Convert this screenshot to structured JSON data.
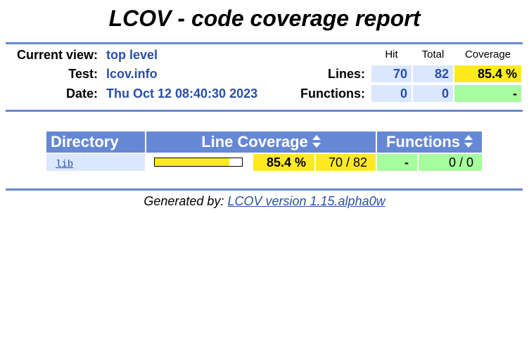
{
  "title": "LCOV - code coverage report",
  "header": {
    "current_view_label": "Current view:",
    "current_view_value": "top level",
    "test_label": "Test:",
    "test_value": "lcov.info",
    "date_label": "Date:",
    "date_value": "Thu Oct 12 08:40:30 2023",
    "col_hit": "Hit",
    "col_total": "Total",
    "col_coverage": "Coverage",
    "lines_label": "Lines:",
    "lines_hit": "70",
    "lines_total": "82",
    "lines_coverage": "85.4 %",
    "functions_label": "Functions:",
    "functions_hit": "0",
    "functions_total": "0",
    "functions_coverage": "-"
  },
  "table": {
    "headers": {
      "directory": "Directory",
      "line_coverage": "Line Coverage",
      "functions": "Functions"
    },
    "rows": [
      {
        "directory": "lib",
        "line_fraction": 0.854,
        "line_percent": "85.4 %",
        "line_ratio": "70 / 82",
        "functions_percent": "-",
        "functions_ratio": "0 / 0"
      }
    ]
  },
  "footer": {
    "prefix": "Generated by:",
    "link_text": "LCOV version 1.15.alpha0w"
  },
  "colors": {
    "accent": "#6688d4",
    "link": "#284fa8",
    "hit_bg": "#dae7fe",
    "coverage_hi": "#ffea20",
    "coverage_med": "#a7fc9d"
  }
}
